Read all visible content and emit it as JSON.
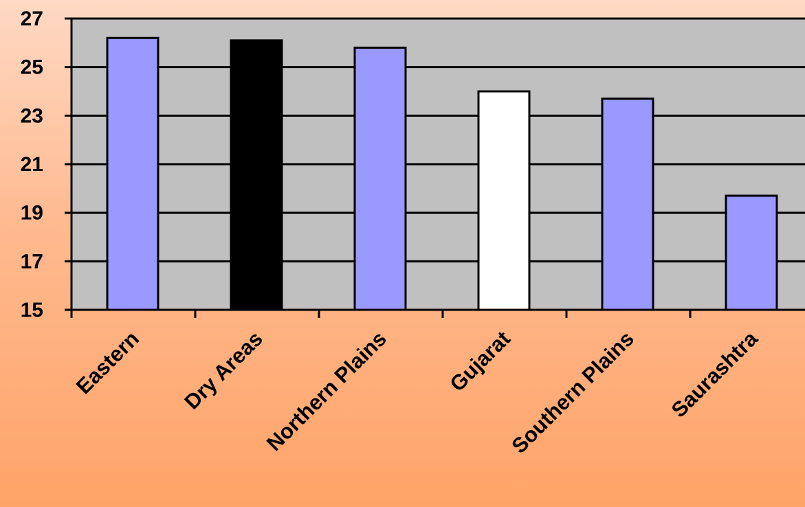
{
  "chart_data": {
    "type": "bar",
    "categories": [
      "Eastern",
      "Dry Areas",
      "Northern Plains",
      "Gujarat",
      "Southern Plains",
      "Saurashtra"
    ],
    "values": [
      26.2,
      26.1,
      25.8,
      24.0,
      23.7,
      19.7
    ],
    "bar_colors": [
      "#9999ff",
      "#000000",
      "#9999ff",
      "#ffffff",
      "#9999ff",
      "#9999ff"
    ],
    "yticks": [
      "27",
      "25",
      "23",
      "21",
      "19",
      "17",
      "15"
    ],
    "ylim": [
      15,
      27
    ],
    "grid": true,
    "legend": "none",
    "plot_background": "#c0c0c0",
    "title": "",
    "xlabel": "",
    "ylabel": ""
  }
}
